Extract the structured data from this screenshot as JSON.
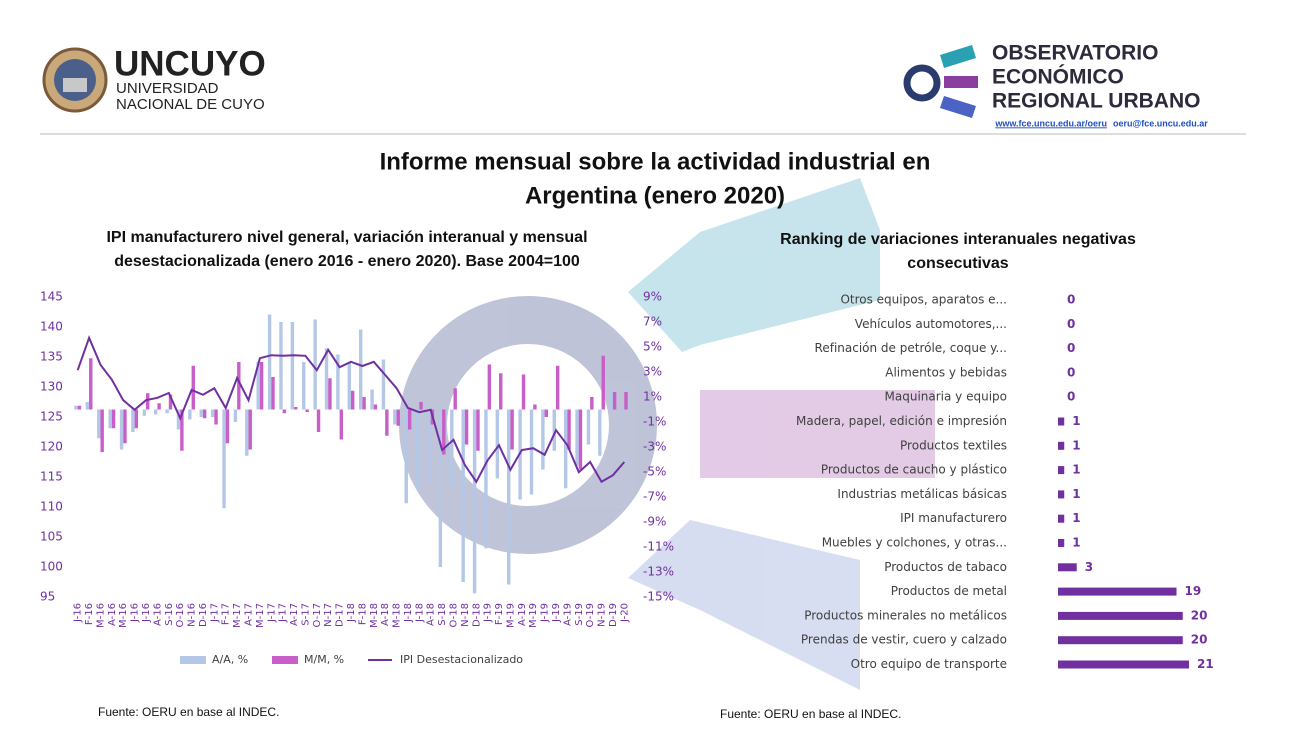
{
  "header": {
    "left_logo": {
      "name": "UNCUYO",
      "lines": [
        "UNIVERSIDAD",
        "NACIONAL DE CUYO"
      ]
    },
    "right_logo": {
      "lines": [
        "OBSERVATORIO",
        "ECONÓMICO",
        "REGIONAL URBANO"
      ],
      "url": "www.fce.uncu.edu.ar/oeru",
      "email": "oeru@fce.uncu.edu.ar"
    },
    "title": [
      "Informe mensual sobre la actividad industrial en",
      "Argentina (enero 2020)"
    ]
  },
  "chart_data": [
    {
      "type": "combo",
      "title": [
        "IPI manufacturero nivel general, variación interanual y mensual",
        "desestacionalizada (enero 2016 - enero 2020). Base 2004=100"
      ],
      "categories": [
        "J-16",
        "F-16",
        "M-16",
        "A-16",
        "M-16",
        "J-16",
        "J-16",
        "A-16",
        "S-16",
        "O-16",
        "N-16",
        "D-16",
        "J-17",
        "F-17",
        "M-17",
        "A-17",
        "M-17",
        "J-17",
        "J-17",
        "A-17",
        "S-17",
        "O-17",
        "N-17",
        "D-17",
        "J-18",
        "F-18",
        "M-18",
        "A-18",
        "M-18",
        "J-18",
        "J-18",
        "A-18",
        "S-18",
        "O-18",
        "N-18",
        "D-18",
        "J-19",
        "F-19",
        "M-19",
        "A-19",
        "M-19",
        "J-19",
        "J-19",
        "A-19",
        "S-19",
        "O-19",
        "N-19",
        "D-19",
        "J-20"
      ],
      "series": [
        {
          "name": "A/A, %",
          "type": "bar",
          "axis": "y2",
          "color": "#b4c7e7",
          "values": [
            0.3,
            0.6,
            -2.3,
            -1.5,
            -3.2,
            -1.8,
            -0.5,
            -0.4,
            -0.3,
            -1.6,
            -0.8,
            -0.6,
            -0.6,
            -7.9,
            -1.0,
            -3.7,
            3.8,
            7.6,
            7.0,
            7.0,
            3.8,
            7.2,
            4.9,
            4.4,
            3.8,
            6.4,
            1.6,
            4.0,
            -1.2,
            -7.5,
            -6.3,
            -5.9,
            -12.6,
            -6.0,
            -13.8,
            -14.7,
            -11.1,
            -5.5,
            -14.0,
            -7.2,
            -6.8,
            -4.8,
            -3.3,
            -6.3,
            -4.5,
            -2.8,
            -3.7,
            1.6,
            -0.5
          ]
        },
        {
          "name": "M/M, %",
          "type": "bar",
          "axis": "y2",
          "color": "#c85ec8",
          "values": [
            0.3,
            4.1,
            -3.4,
            -1.5,
            -2.7,
            -1.5,
            1.3,
            0.5,
            1.2,
            -3.3,
            3.5,
            -0.7,
            -1.2,
            -2.7,
            3.8,
            -3.2,
            3.8,
            2.6,
            -0.3,
            0.2,
            -0.2,
            -1.8,
            2.5,
            -2.4,
            1.5,
            1.0,
            0.4,
            -2.1,
            -1.3,
            -1.6,
            0.6,
            -1.2,
            -3.6,
            1.7,
            -2.8,
            -3.3,
            3.6,
            2.9,
            -3.2,
            2.8,
            0.4,
            -0.6,
            3.5,
            -3.2,
            -4.8,
            1.0,
            4.3,
            1.4,
            1.4
          ]
        },
        {
          "name": "IPI Desestacionalizado",
          "type": "line",
          "axis": "y",
          "color": "#7030a0",
          "values": [
            132.8,
            138.2,
            133.7,
            131.2,
            127.8,
            126.2,
            127.8,
            128.2,
            129,
            124.8,
            129.5,
            128.7,
            129.8,
            126.5,
            131.5,
            127.8,
            134.8,
            135.3,
            135.2,
            135.3,
            135.2,
            132.8,
            136.2,
            133.3,
            134.2,
            133.5,
            134.2,
            132,
            129.8,
            126.5,
            125.8,
            126.2,
            119.5,
            121.2,
            117,
            114.2,
            117.8,
            120.3,
            116.2,
            119.5,
            119.8,
            118.7,
            122.8,
            120.3,
            115.8,
            117.5,
            114.2,
            115.3,
            117.5
          ]
        }
      ],
      "ylim": [
        95,
        145
      ],
      "yticks": [
        95,
        100,
        105,
        110,
        115,
        120,
        125,
        130,
        135,
        140,
        145
      ],
      "y2lim": [
        -15,
        9
      ],
      "y2ticks": [
        {
          "value": 9,
          "label": "9%"
        },
        {
          "value": 7,
          "label": "7%"
        },
        {
          "value": 5,
          "label": "5%"
        },
        {
          "value": 3,
          "label": "3%"
        },
        {
          "value": 1,
          "label": "1%"
        },
        {
          "value": -1,
          "label": "-1%"
        },
        {
          "value": -3,
          "label": "-3%"
        },
        {
          "value": -5,
          "label": "-5%"
        },
        {
          "value": -7,
          "label": "-7%"
        },
        {
          "value": -9,
          "label": "-9%"
        },
        {
          "value": -11,
          "label": "-11%"
        },
        {
          "value": -13,
          "label": "-13%"
        },
        {
          "value": -15,
          "label": "-15%"
        }
      ],
      "legend": "bottom",
      "source": "Fuente: OERU en base al INDEC."
    },
    {
      "type": "hbar",
      "title": [
        "Ranking de variaciones interanuales negativas",
        "consecutivas"
      ],
      "categories": [
        "Otros equipos, aparatos e...",
        "Vehículos automotores,...",
        "Refinación de petróle, coque y...",
        "Alimentos y bebidas",
        "Maquinaria y equipo",
        "Madera, papel, edición e impresión",
        "Productos textiles",
        "Productos de caucho y plástico",
        "Industrias metálicas básicas",
        "IPI manufacturero",
        "Muebles y colchones, y otras...",
        "Productos de tabaco",
        "Productos de metal",
        "Productos minerales no metálicos",
        "Prendas de vestir, cuero y calzado",
        "Otro equipo de transporte"
      ],
      "values": [
        0,
        0,
        0,
        0,
        0,
        1,
        1,
        1,
        1,
        1,
        1,
        3,
        19,
        20,
        20,
        21
      ],
      "color": "#7030a0",
      "source": "Fuente: OERU en base al INDEC."
    }
  ]
}
